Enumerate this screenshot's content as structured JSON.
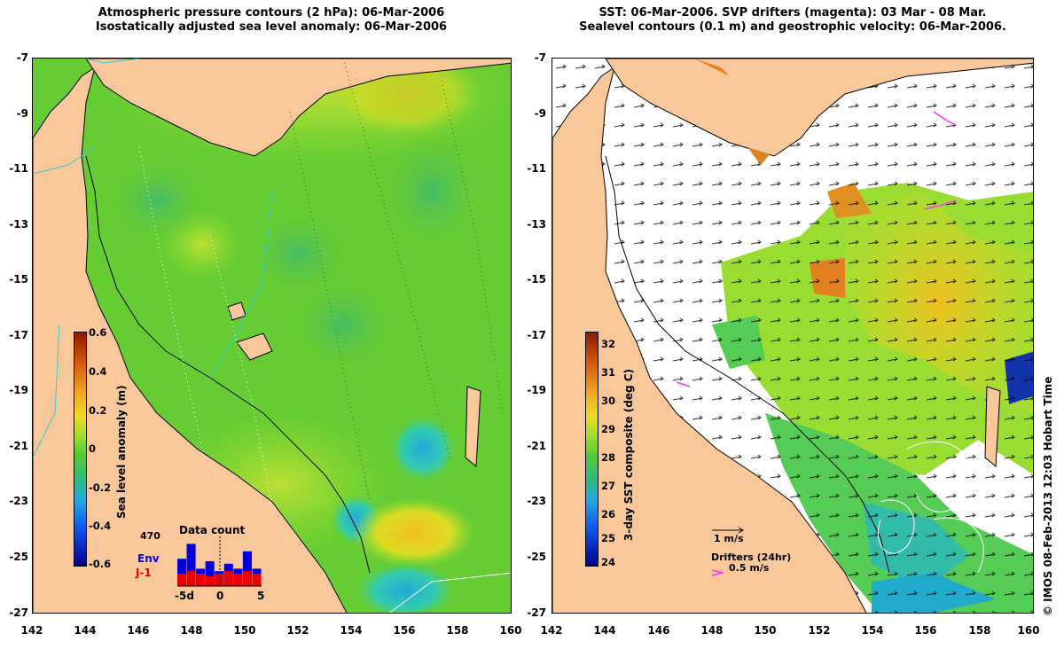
{
  "left_panel": {
    "title_line1": "Atmospheric pressure contours (2 hPa): 06-Mar-2006",
    "title_line2": "Isostatically adjusted sea level anomaly: 06-Mar-2006",
    "colorbar": {
      "label": "Sea level anomaly (m)",
      "ticks": [
        "0.6",
        "0.4",
        "0.2",
        "0",
        "-0.2",
        "-0.4",
        "-0.6"
      ]
    },
    "data_count": {
      "title": "Data count",
      "max_label": "470",
      "legend_env": "Env",
      "legend_j1": "J-1",
      "x_ticks": [
        "-5d",
        "0",
        "5"
      ],
      "env_bars": [
        0.55,
        0.85,
        0.35,
        0.5,
        0.3,
        0.45,
        0.35,
        0.7,
        0.35
      ],
      "j1_bars": [
        0.25,
        0.3,
        0.25,
        0.2,
        0.25,
        0.3,
        0.25,
        0.3,
        0.25
      ]
    }
  },
  "right_panel": {
    "title_line1": "SST: 06-Mar-2006. SVP drifters (magenta): 03 Mar - 08 Mar.",
    "title_line2": "Sealevel contours (0.1 m) and geostrophic velocity: 06-Mar-2006.",
    "colorbar": {
      "label": "3-day SST composite (deg C)",
      "ticks": [
        "32",
        "31",
        "30",
        "29",
        "28",
        "27",
        "26",
        "25",
        "24"
      ]
    },
    "velocity_scale_label": "1 m/s",
    "drifters_label": "Drifters (24hr)",
    "drifters_scale_label": "0.5 m/s"
  },
  "axes": {
    "y_ticks": [
      "-7",
      "-9",
      "-11",
      "-13",
      "-15",
      "-17",
      "-19",
      "-21",
      "-23",
      "-25",
      "-27"
    ],
    "x_ticks": [
      "142",
      "144",
      "146",
      "148",
      "150",
      "152",
      "154",
      "156",
      "158",
      "160"
    ]
  },
  "credit": "© IMOS 08-Feb-2013 12:03 Hobart Time",
  "colors": {
    "land": "#f8c89a",
    "sea_green": "#66cc33",
    "sea_light": "#99dd33",
    "low_cyan": "#33bbbb",
    "high_yellow": "#eedd22",
    "env_bar": "#0000dd",
    "j1_bar": "#ee0000",
    "drifter": "#ff33ff"
  }
}
